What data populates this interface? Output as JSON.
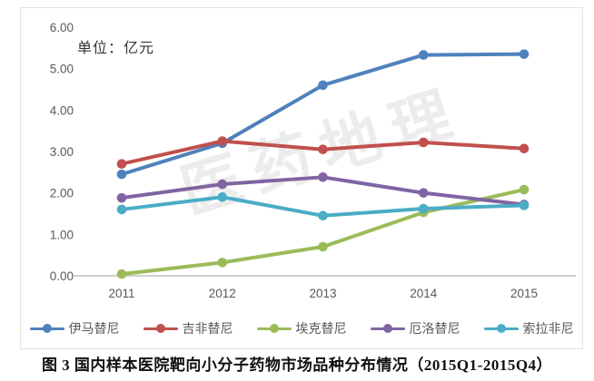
{
  "panel": {
    "unit_label": "单位：亿元",
    "watermark": "医药地理"
  },
  "caption": "图 3  国内样本医院靶向小分子药物市场品种分布情况（2015Q1-2015Q4）",
  "colors": {
    "axis_line": "#bfbfbf",
    "tick_text": "#595959",
    "panel_border": "#e3e3e3",
    "series_blue": "#4F81BD",
    "series_red": "#C0504D",
    "series_green": "#9BBB59",
    "series_purple": "#8064A2",
    "series_teal": "#4BACC6"
  },
  "chart_data": {
    "type": "line",
    "categories": [
      "2011",
      "2012",
      "2013",
      "2014",
      "2015"
    ],
    "series": [
      {
        "name": "伊马替尼",
        "color": "#4F81BD",
        "values": [
          2.45,
          3.2,
          4.6,
          5.33,
          5.35
        ]
      },
      {
        "name": "吉非替尼",
        "color": "#C0504D",
        "values": [
          2.7,
          3.25,
          3.05,
          3.22,
          3.07
        ]
      },
      {
        "name": "埃克替尼",
        "color": "#9BBB59",
        "values": [
          0.04,
          0.32,
          0.7,
          1.53,
          2.08
        ]
      },
      {
        "name": "厄洛替尼",
        "color": "#8064A2",
        "values": [
          1.88,
          2.21,
          2.38,
          2.0,
          1.72
        ]
      },
      {
        "name": "索拉非尼",
        "color": "#4BACC6",
        "values": [
          1.6,
          1.9,
          1.45,
          1.62,
          1.7
        ]
      }
    ],
    "title": "",
    "xlabel": "",
    "ylabel": "单位：亿元",
    "ylim": [
      0,
      6
    ],
    "ytick_step": 1,
    "ytick_format": "two_decimals",
    "grid": false,
    "legend_position": "bottom",
    "marker": "circle"
  }
}
